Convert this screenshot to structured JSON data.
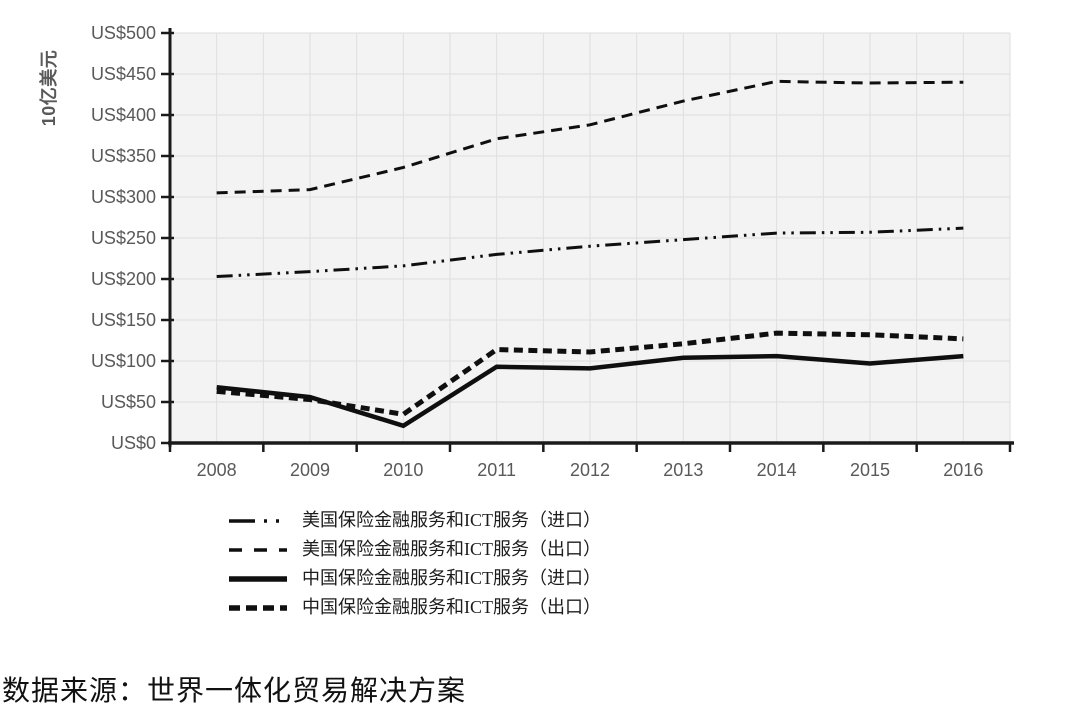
{
  "chart_data": {
    "type": "line",
    "title": "",
    "ylabel": "10亿美元",
    "ylim": [
      0,
      500
    ],
    "y_tick_step": 50,
    "y_tick_labels": [
      "US$0",
      "US$50",
      "US$100",
      "US$150",
      "US$200",
      "US$250",
      "US$300",
      "US$350",
      "US$400",
      "US$450",
      "US$500"
    ],
    "categories": [
      "2008",
      "2009",
      "2010",
      "2011",
      "2012",
      "2013",
      "2014",
      "2015",
      "2016"
    ],
    "series": [
      {
        "name": "美国保险金融服务和ICT服务（进口）",
        "style": "dash-dot-dot",
        "width": 3,
        "values": [
          203,
          209,
          216,
          230,
          240,
          248,
          256,
          257,
          262
        ]
      },
      {
        "name": "美国保险金融服务和ICT服务（出口）",
        "style": "dashed",
        "width": 3,
        "values": [
          305,
          309,
          336,
          371,
          388,
          417,
          441,
          439,
          440
        ]
      },
      {
        "name": "中国保险金融服务和ICT服务（进口）",
        "style": "solid",
        "width": 4.5,
        "values": [
          68,
          56,
          21,
          93,
          91,
          104,
          106,
          97,
          106
        ]
      },
      {
        "name": "中国保险金融服务和ICT服务（出口）",
        "style": "dashed-thick",
        "width": 5,
        "values": [
          63,
          53,
          35,
          114,
          111,
          121,
          134,
          132,
          127
        ]
      }
    ],
    "grid": true,
    "legend_position": "bottom-left",
    "colors": {
      "line": "#0f0f0f",
      "axis": "#1a1a1a",
      "tick_label": "#595959",
      "plot_bg": "#f3f3f3",
      "gridline": "#dedede"
    }
  },
  "source_note": "数据来源：世界一体化贸易解决方案"
}
